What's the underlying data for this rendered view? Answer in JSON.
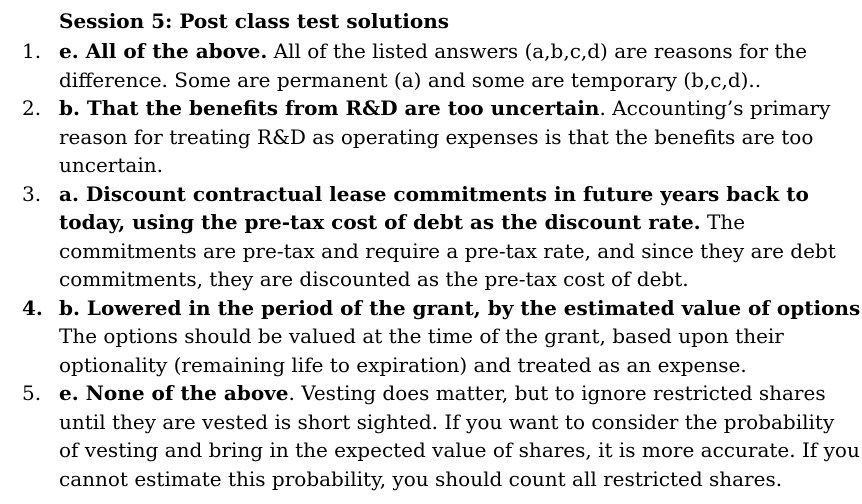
{
  "title": "Session 5: Post class test solutions",
  "items": [
    {
      "number": "1.",
      "lines": [
        [
          {
            "bold": true,
            "text": "e. All of the above."
          },
          {
            "bold": false,
            "text": "  All of the listed answers (a,b,c,d) are reasons for the"
          }
        ],
        [
          {
            "bold": false,
            "text": "difference. Some are permanent (a) and some are temporary (b,c,d).."
          }
        ]
      ]
    },
    {
      "number": "2.",
      "lines": [
        [
          {
            "bold": true,
            "text": "b. That the benefits from R&D are too uncertain"
          },
          {
            "bold": false,
            "text": ". Accounting’s primary"
          }
        ],
        [
          {
            "bold": false,
            "text": "reason for treating R&D as operating expenses is that the benefits are too"
          }
        ],
        [
          {
            "bold": false,
            "text": "uncertain."
          }
        ]
      ]
    },
    {
      "number": "3.",
      "lines": [
        [
          {
            "bold": true,
            "text": "a. Discount contractual lease commitments in future years back to"
          }
        ],
        [
          {
            "bold": true,
            "text": "today, using the pre-tax cost of debt as the discount rate."
          },
          {
            "bold": false,
            "text": " The"
          }
        ],
        [
          {
            "bold": false,
            "text": "commitments are pre-tax and require a pre-tax rate, and since they are debt"
          }
        ],
        [
          {
            "bold": false,
            "text": "commitments, they are discounted as the pre-tax cost of debt."
          }
        ]
      ]
    },
    {
      "number": "4.",
      "lines": [
        [
          {
            "bold": true,
            "text": "b. Lowered in the period of the grant, by the estimated value of options."
          }
        ],
        [
          {
            "bold": false,
            "text": "The options should be valued at the time of the grant, based upon their"
          }
        ],
        [
          {
            "bold": false,
            "text": "optionality (remaining life to expiration) and treated as an expense."
          }
        ]
      ]
    },
    {
      "number": "5.",
      "lines": [
        [
          {
            "bold": true,
            "text": "e.  None of the above"
          },
          {
            "bold": false,
            "text": ". Vesting does matter, but to ignore restricted shares"
          }
        ],
        [
          {
            "bold": false,
            "text": "until they are vested is short sighted. If you want to consider the probability"
          }
        ],
        [
          {
            "bold": false,
            "text": "of vesting and bring in the expected value of shares, it is more accurate. If you"
          }
        ],
        [
          {
            "bold": false,
            "text": "cannot estimate this probability, you should count all restricted shares."
          }
        ]
      ]
    }
  ]
}
